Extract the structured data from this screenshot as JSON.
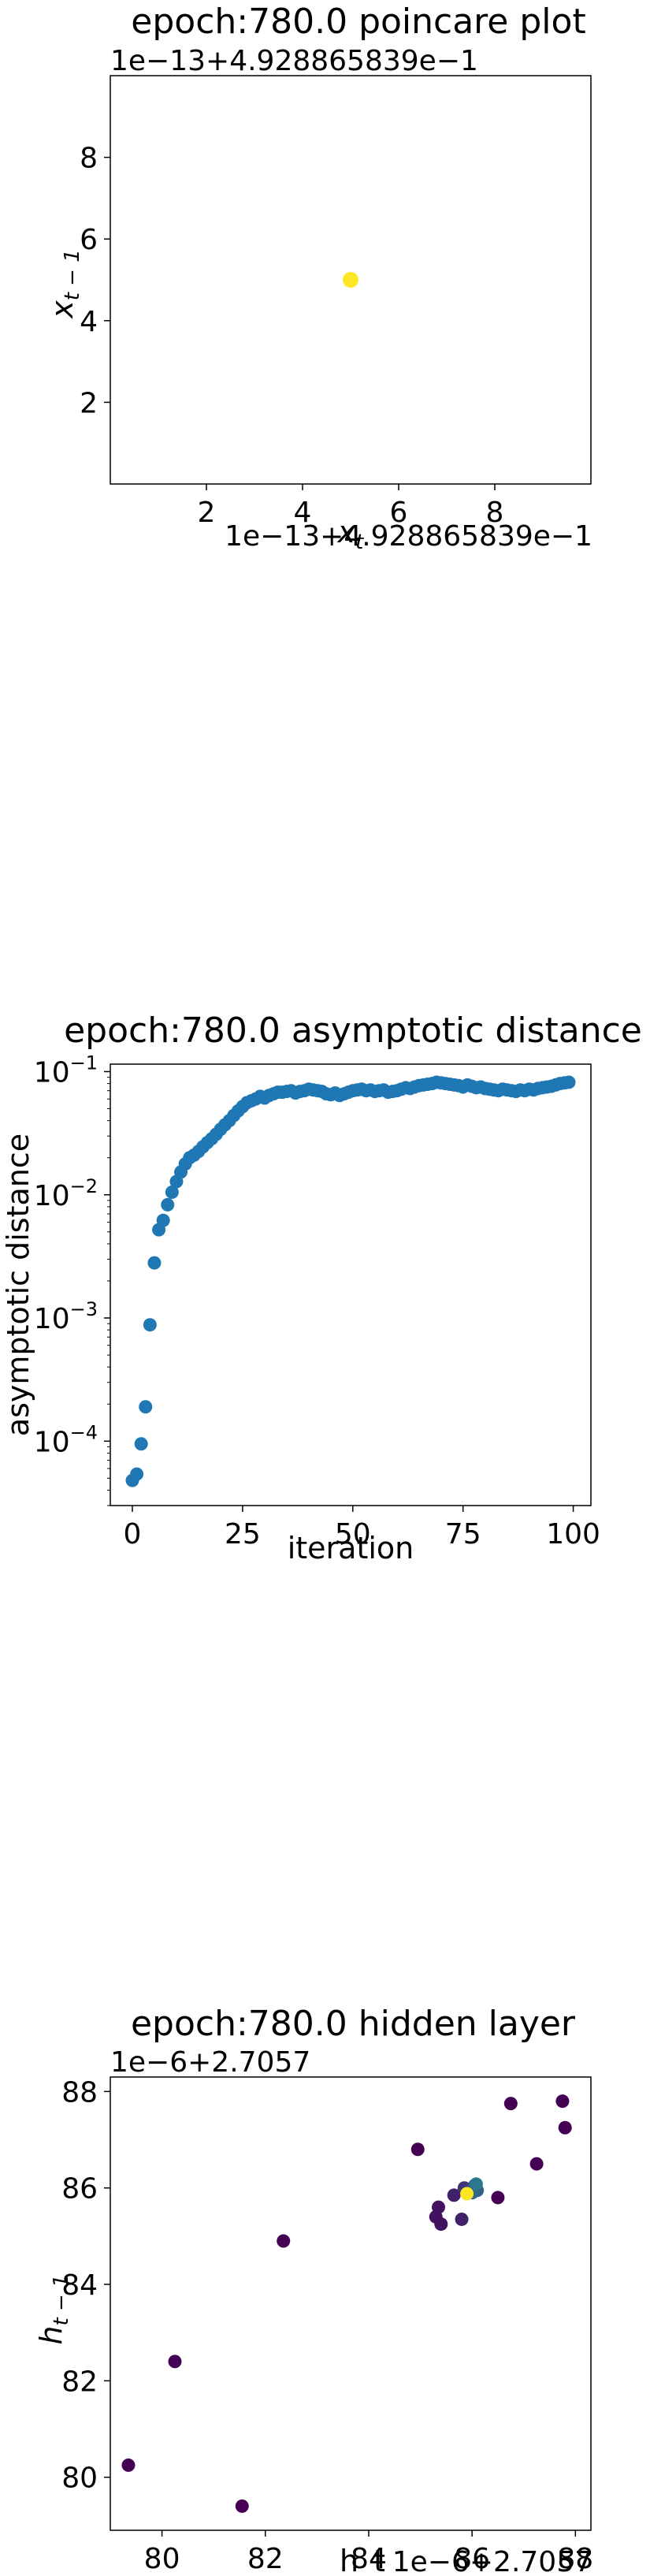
{
  "chart_data": [
    {
      "type": "scatter",
      "title": "epoch:780.0 poincare plot",
      "xlabel": "x_t",
      "ylabel": "x_{t-1}",
      "x_offset_label": "1e−13+4.928865839e−1",
      "y_offset_label": "1e−13+4.928865839e−1",
      "xlim": [
        0,
        10
      ],
      "ylim": [
        0,
        10
      ],
      "xticks": [
        2,
        4,
        6,
        8
      ],
      "yticks": [
        2,
        4,
        6,
        8
      ],
      "points": [
        {
          "x": 5,
          "y": 5
        }
      ],
      "marker_color": "#fde725",
      "grid": false
    },
    {
      "type": "scatter",
      "title": "epoch:780.0 asymptotic distance",
      "xlabel": "iteration",
      "ylabel": "asymptotic distance",
      "xlim": [
        -5,
        104
      ],
      "ylim": [
        3e-05,
        0.115
      ],
      "yscale": "log",
      "xticks": [
        0,
        25,
        50,
        75,
        100
      ],
      "yticks": [
        {
          "value": 0.0001,
          "base": "10",
          "exp": "−4"
        },
        {
          "value": 0.001,
          "base": "10",
          "exp": "−3"
        },
        {
          "value": 0.01,
          "base": "10",
          "exp": "−2"
        },
        {
          "value": 0.1,
          "base": "10",
          "exp": "−1"
        }
      ],
      "x": [
        0,
        1,
        2,
        3,
        4,
        5,
        6,
        7,
        8,
        9,
        10,
        11,
        12,
        13,
        14,
        15,
        16,
        17,
        18,
        19,
        20,
        21,
        22,
        23,
        24,
        25,
        26,
        27,
        28,
        29,
        30,
        31,
        32,
        33,
        34,
        35,
        36,
        37,
        38,
        39,
        40,
        41,
        42,
        43,
        44,
        45,
        46,
        47,
        48,
        49,
        50,
        51,
        52,
        53,
        54,
        55,
        56,
        57,
        58,
        59,
        60,
        61,
        62,
        63,
        64,
        65,
        66,
        67,
        68,
        69,
        70,
        71,
        72,
        73,
        74,
        75,
        76,
        77,
        78,
        79,
        80,
        81,
        82,
        83,
        84,
        85,
        86,
        87,
        88,
        89,
        90,
        91,
        92,
        93,
        94,
        95,
        96,
        97,
        98,
        99
      ],
      "y": [
        4.8e-05,
        5.4e-05,
        9.5e-05,
        0.00019,
        0.00088,
        0.0028,
        0.0052,
        0.0062,
        0.0083,
        0.0105,
        0.0128,
        0.0153,
        0.0178,
        0.02,
        0.021,
        0.0225,
        0.0245,
        0.0265,
        0.0285,
        0.031,
        0.034,
        0.037,
        0.04,
        0.044,
        0.048,
        0.052,
        0.056,
        0.058,
        0.06,
        0.063,
        0.061,
        0.064,
        0.066,
        0.068,
        0.068,
        0.069,
        0.07,
        0.067,
        0.069,
        0.07,
        0.072,
        0.071,
        0.07,
        0.069,
        0.066,
        0.065,
        0.067,
        0.064,
        0.066,
        0.068,
        0.07,
        0.071,
        0.072,
        0.07,
        0.071,
        0.069,
        0.07,
        0.071,
        0.068,
        0.069,
        0.07,
        0.072,
        0.074,
        0.073,
        0.075,
        0.077,
        0.078,
        0.079,
        0.08,
        0.082,
        0.081,
        0.08,
        0.079,
        0.078,
        0.077,
        0.075,
        0.078,
        0.076,
        0.074,
        0.075,
        0.073,
        0.072,
        0.071,
        0.07,
        0.072,
        0.071,
        0.07,
        0.069,
        0.071,
        0.07,
        0.072,
        0.071,
        0.073,
        0.074,
        0.075,
        0.076,
        0.078,
        0.08,
        0.081,
        0.082
      ],
      "marker_color": "#1f77b4",
      "grid": false
    },
    {
      "type": "scatter",
      "title": "epoch:780.0 hidden layer",
      "xlabel": "h_t",
      "ylabel": "h_{t-1}",
      "x_offset_label": "1e−6+2.7057",
      "y_offset_label": "1e−6+2.7057",
      "xlim": [
        79,
        88.3
      ],
      "ylim": [
        78.9,
        88.3
      ],
      "xticks": [
        80,
        82,
        84,
        86,
        88
      ],
      "yticks": [
        80,
        82,
        84,
        86,
        88
      ],
      "colormap": "viridis",
      "points": [
        {
          "x": 79.35,
          "y": 80.25,
          "c": 0.0
        },
        {
          "x": 80.25,
          "y": 82.4,
          "c": 0.0
        },
        {
          "x": 81.55,
          "y": 79.4,
          "c": 0.0
        },
        {
          "x": 82.35,
          "y": 84.9,
          "c": 0.0
        },
        {
          "x": 84.95,
          "y": 86.8,
          "c": 0.0
        },
        {
          "x": 86.75,
          "y": 87.75,
          "c": 0.0
        },
        {
          "x": 87.25,
          "y": 86.5,
          "c": 0.0
        },
        {
          "x": 87.75,
          "y": 87.8,
          "c": 0.0
        },
        {
          "x": 87.8,
          "y": 87.25,
          "c": 0.0
        },
        {
          "x": 86.5,
          "y": 85.8,
          "c": 0.0
        },
        {
          "x": 85.3,
          "y": 85.4,
          "c": 0.05
        },
        {
          "x": 85.4,
          "y": 85.25,
          "c": 0.05
        },
        {
          "x": 85.35,
          "y": 85.6,
          "c": 0.05
        },
        {
          "x": 85.65,
          "y": 85.85,
          "c": 0.1
        },
        {
          "x": 85.8,
          "y": 85.35,
          "c": 0.1
        },
        {
          "x": 85.85,
          "y": 86.0,
          "c": 0.15
        },
        {
          "x": 85.95,
          "y": 85.95,
          "c": 0.2
        },
        {
          "x": 86.05,
          "y": 86.05,
          "c": 0.25
        },
        {
          "x": 86.1,
          "y": 85.95,
          "c": 0.3
        },
        {
          "x": 86.0,
          "y": 85.9,
          "c": 0.35
        },
        {
          "x": 86.08,
          "y": 86.08,
          "c": 0.4
        },
        {
          "x": 85.9,
          "y": 85.88,
          "c": 1.0
        }
      ],
      "grid": false
    }
  ]
}
